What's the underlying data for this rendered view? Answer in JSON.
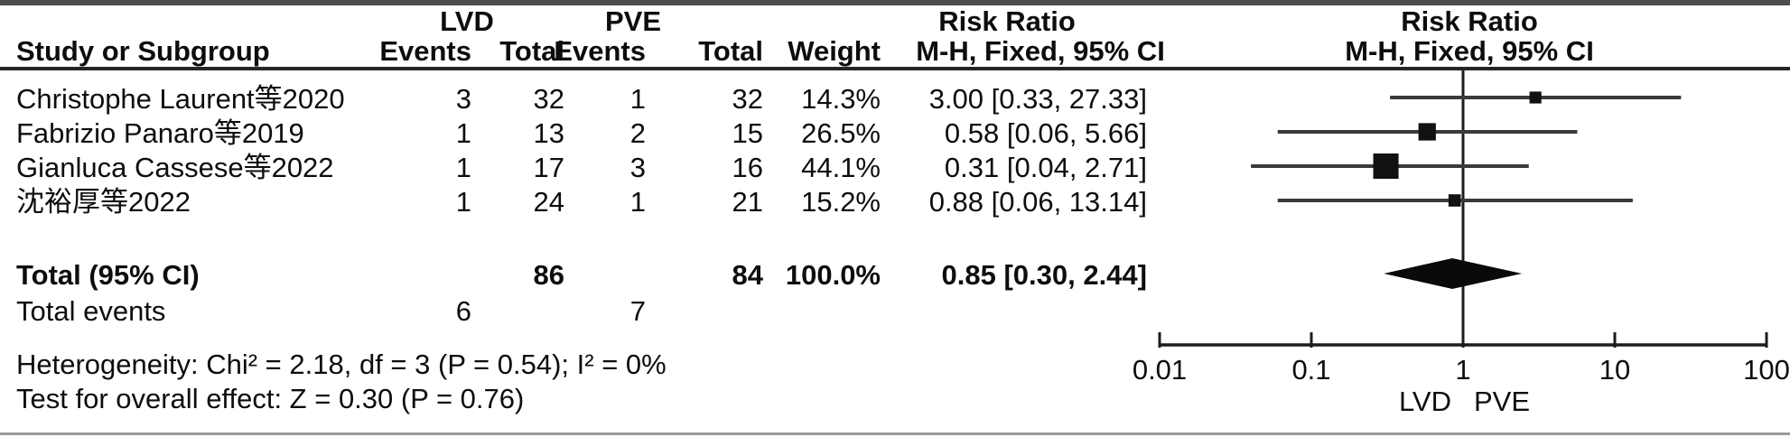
{
  "table": {
    "headers": {
      "group_lvd": "LVD",
      "group_pve": "PVE",
      "risk_ratio_left": "Risk Ratio",
      "risk_ratio_right": "Risk Ratio",
      "study": "Study or Subgroup",
      "lvd_events": "Events",
      "lvd_total": "Total",
      "pve_events": "Events",
      "pve_total": "Total",
      "weight": "Weight",
      "mh_left": "M-H, Fixed, 95% CI",
      "mh_right": "M-H, Fixed, 95% CI"
    },
    "studies": [
      {
        "name": "Christophe Laurent等2020",
        "lvd_events": "3",
        "lvd_total": "32",
        "pve_events": "1",
        "pve_total": "32",
        "weight": "14.3%",
        "rr_text": "3.00 [0.33, 27.33]"
      },
      {
        "name": "Fabrizio Panaro等2019",
        "lvd_events": "1",
        "lvd_total": "13",
        "pve_events": "2",
        "pve_total": "15",
        "weight": "26.5%",
        "rr_text": "0.58 [0.06, 5.66]"
      },
      {
        "name": "Gianluca Cassese等2022",
        "lvd_events": "1",
        "lvd_total": "17",
        "pve_events": "3",
        "pve_total": "16",
        "weight": "44.1%",
        "rr_text": "0.31 [0.04, 2.71]"
      },
      {
        "name": "沈裕厚等2022",
        "lvd_events": "1",
        "lvd_total": "24",
        "pve_events": "1",
        "pve_total": "21",
        "weight": "15.2%",
        "rr_text": "0.88 [0.06, 13.14]"
      }
    ],
    "total": {
      "label": "Total (95% CI)",
      "lvd_total": "86",
      "pve_total": "84",
      "weight": "100.0%",
      "rr_text": "0.85 [0.30, 2.44]"
    },
    "total_events": {
      "label": "Total events",
      "lvd": "6",
      "pve": "7"
    },
    "heterogeneity": "Heterogeneity: Chi² = 2.18, df = 3 (P = 0.54); I² = 0%",
    "overall_effect": "Test for overall effect: Z = 0.30 (P = 0.76)"
  },
  "chart_data": {
    "type": "scatter",
    "subtype": "forest-plot",
    "effect_measure": "Risk Ratio, M-H, Fixed, 95% CI",
    "x_scale": "log10",
    "x_ticks": [
      0.01,
      0.1,
      1,
      10,
      100
    ],
    "xlim": [
      0.01,
      100
    ],
    "null_line": 1,
    "favours_left": "LVD",
    "favours_right": "PVE",
    "studies": [
      {
        "name": "Christophe Laurent等2020",
        "rr": 3.0,
        "ci_low": 0.33,
        "ci_high": 27.33,
        "weight_pct": 14.3,
        "lvd_events": 3,
        "lvd_total": 32,
        "pve_events": 1,
        "pve_total": 32
      },
      {
        "name": "Fabrizio Panaro等2019",
        "rr": 0.58,
        "ci_low": 0.06,
        "ci_high": 5.66,
        "weight_pct": 26.5,
        "lvd_events": 1,
        "lvd_total": 13,
        "pve_events": 2,
        "pve_total": 15
      },
      {
        "name": "Gianluca Cassese等2022",
        "rr": 0.31,
        "ci_low": 0.04,
        "ci_high": 2.71,
        "weight_pct": 44.1,
        "lvd_events": 1,
        "lvd_total": 17,
        "pve_events": 3,
        "pve_total": 16
      },
      {
        "name": "沈裕厚等2022",
        "rr": 0.88,
        "ci_low": 0.06,
        "ci_high": 13.14,
        "weight_pct": 15.2,
        "lvd_events": 1,
        "lvd_total": 24,
        "pve_events": 1,
        "pve_total": 21
      }
    ],
    "total": {
      "rr": 0.85,
      "ci_low": 0.3,
      "ci_high": 2.44,
      "lvd_total": 86,
      "pve_total": 84,
      "weight_pct": 100.0,
      "total_events_lvd": 6,
      "total_events_pve": 7,
      "heterogeneity": {
        "chi2": 2.18,
        "df": 3,
        "p": 0.54,
        "i2_pct": 0
      },
      "overall_effect": {
        "z": 0.3,
        "p": 0.76
      }
    }
  },
  "colors": {
    "text": "#0d0d0d",
    "ci_line": "#3a3a3a",
    "marker": "#111111",
    "diamond": "#0a0a0a",
    "axis": "#1c1c1c",
    "rule": "#262626"
  }
}
